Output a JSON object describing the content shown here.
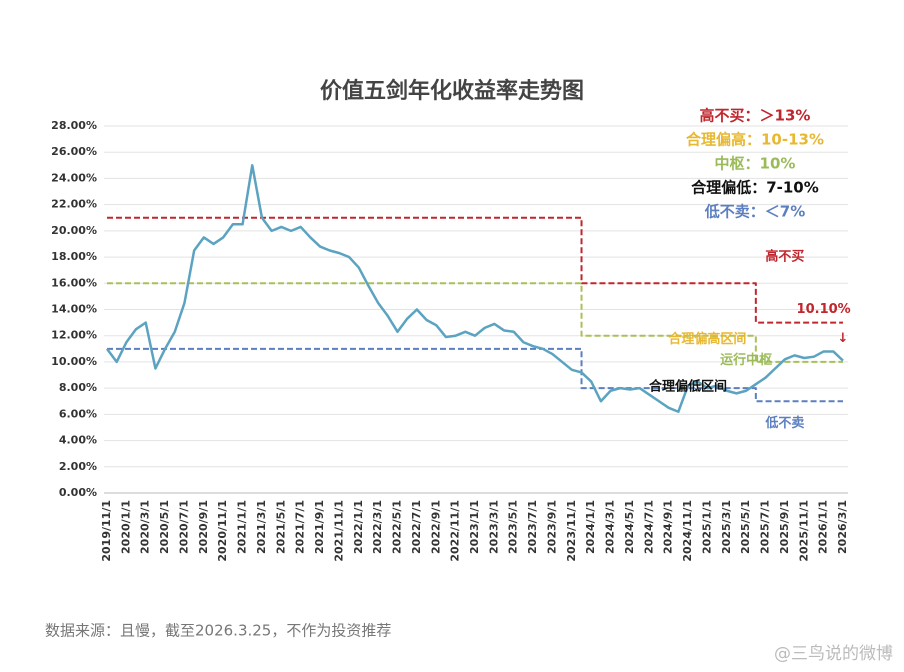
{
  "chart_data": {
    "type": "line",
    "title": "价值五剑年化收益率走势图",
    "categories": [
      "2019/11/1",
      null,
      "2020/1/1",
      null,
      "2020/3/1",
      null,
      "2020/5/1",
      null,
      "2020/7/1",
      null,
      "2020/9/1",
      null,
      "2020/11/1",
      null,
      "2021/1/1",
      null,
      "2021/3/1",
      null,
      "2021/5/1",
      null,
      "2021/7/1",
      null,
      "2021/9/1",
      null,
      "2021/11/1",
      null,
      "2022/1/1",
      null,
      "2022/3/1",
      null,
      "2022/5/1",
      null,
      "2022/7/1",
      null,
      "2022/9/1",
      null,
      "2022/11/1",
      null,
      "2023/1/1",
      null,
      "2023/3/1",
      null,
      "2023/5/1",
      null,
      "2023/7/1",
      null,
      "2023/9/1",
      null,
      "2023/11/1",
      null,
      "2024/1/1",
      null,
      "2024/3/1",
      null,
      "2024/5/1",
      null,
      "2024/7/1",
      null,
      "2024/9/1",
      null,
      "2024/11/1",
      null,
      "2025/1/1",
      null,
      "2025/3/1",
      null,
      "2025/5/1",
      null,
      "2025/7/1",
      null,
      "2025/9/1",
      null,
      "2025/11/1",
      null,
      "2026/1/1",
      null,
      "2026/3/1"
    ],
    "series": [
      {
        "color": "#5ba3c0",
        "style": "solid",
        "values": [
          11.0,
          10.0,
          11.5,
          12.5,
          13.0,
          9.5,
          11.0,
          12.3,
          14.5,
          18.5,
          19.5,
          19.0,
          19.5,
          20.5,
          20.5,
          25.0,
          21.0,
          20.0,
          20.3,
          20.0,
          20.3,
          19.5,
          18.8,
          18.5,
          18.3,
          18.0,
          17.2,
          15.8,
          14.5,
          13.5,
          12.3,
          13.3,
          14.0,
          13.2,
          12.8,
          11.9,
          12.0,
          12.3,
          12.0,
          12.6,
          12.9,
          12.4,
          12.3,
          11.5,
          11.2,
          11.0,
          10.6,
          10.0,
          9.4,
          9.2,
          8.5,
          7.0,
          7.8,
          8.0,
          7.9,
          8.0,
          7.5,
          7.0,
          6.5,
          6.2,
          8.2,
          8.5,
          8.0,
          8.2,
          7.8,
          7.6,
          7.8,
          8.3,
          8.8,
          9.5,
          10.2,
          10.5,
          10.3,
          10.4,
          10.8,
          10.8,
          10.1
        ]
      },
      {
        "color": "#c0262d",
        "style": "dashed-step",
        "values": [
          21,
          21,
          21,
          21,
          21,
          21,
          21,
          21,
          21,
          21,
          21,
          21,
          21,
          21,
          21,
          21,
          21,
          21,
          21,
          21,
          21,
          21,
          21,
          21,
          21,
          21,
          21,
          21,
          21,
          21,
          21,
          21,
          21,
          21,
          21,
          21,
          21,
          21,
          21,
          21,
          21,
          21,
          21,
          21,
          21,
          21,
          21,
          21,
          21,
          16,
          16,
          16,
          16,
          16,
          16,
          16,
          16,
          16,
          16,
          16,
          16,
          16,
          16,
          16,
          16,
          16,
          16,
          13,
          13,
          13,
          13,
          13,
          13,
          13,
          13,
          13,
          13
        ]
      },
      {
        "color": "#a8c05a",
        "style": "dashed-step",
        "values": [
          16,
          16,
          16,
          16,
          16,
          16,
          16,
          16,
          16,
          16,
          16,
          16,
          16,
          16,
          16,
          16,
          16,
          16,
          16,
          16,
          16,
          16,
          16,
          16,
          16,
          16,
          16,
          16,
          16,
          16,
          16,
          16,
          16,
          16,
          16,
          16,
          16,
          16,
          16,
          16,
          16,
          16,
          16,
          16,
          16,
          16,
          16,
          16,
          16,
          12,
          12,
          12,
          12,
          12,
          12,
          12,
          12,
          12,
          12,
          12,
          12,
          12,
          12,
          12,
          12,
          12,
          12,
          10,
          10,
          10,
          10,
          10,
          10,
          10,
          10,
          10,
          10
        ]
      },
      {
        "color": "#5b7fc0",
        "style": "dashed-step",
        "values": [
          11,
          11,
          11,
          11,
          11,
          11,
          11,
          11,
          11,
          11,
          11,
          11,
          11,
          11,
          11,
          11,
          11,
          11,
          11,
          11,
          11,
          11,
          11,
          11,
          11,
          11,
          11,
          11,
          11,
          11,
          11,
          11,
          11,
          11,
          11,
          11,
          11,
          11,
          11,
          11,
          11,
          11,
          11,
          11,
          11,
          11,
          11,
          11,
          11,
          8,
          8,
          8,
          8,
          8,
          8,
          8,
          8,
          8,
          8,
          8,
          8,
          8,
          8,
          8,
          8,
          8,
          8,
          7,
          7,
          7,
          7,
          7,
          7,
          7,
          7,
          7,
          7
        ]
      }
    ],
    "ylim": [
      0,
      28
    ],
    "yticks": [
      {
        "value": 0,
        "label": "0.00%"
      },
      {
        "value": 2,
        "label": "2.00%"
      },
      {
        "value": 4,
        "label": "4.00%"
      },
      {
        "value": 6,
        "label": "6.00%"
      },
      {
        "value": 8,
        "label": "8.00%"
      },
      {
        "value": 10,
        "label": "10.00%"
      },
      {
        "value": 12,
        "label": "12.00%"
      },
      {
        "value": 14,
        "label": "14.00%"
      },
      {
        "value": 16,
        "label": "16.00%"
      },
      {
        "value": 18,
        "label": "18.00%"
      },
      {
        "value": 20,
        "label": "20.00%"
      },
      {
        "value": 22,
        "label": "22.00%"
      },
      {
        "value": 24,
        "label": "24.00%"
      },
      {
        "value": 26,
        "label": "26.00%"
      },
      {
        "value": 28,
        "label": "28.00%"
      }
    ],
    "grid": true,
    "legend_lines": [
      {
        "text": "高不买：＞13%",
        "color": "#c0262d"
      },
      {
        "text": "合理偏高：10-13%",
        "color": "#e8b830"
      },
      {
        "text": "中枢：10%",
        "color": "#9bbb59"
      },
      {
        "text": "合理偏低：7-10%",
        "color": "#111111"
      },
      {
        "text": "低不卖：＜7%",
        "color": "#5b7fc0"
      }
    ],
    "annotations": [
      {
        "text": "高不买",
        "color": "#c0262d",
        "x": "2025/9/1",
        "y": 18
      },
      {
        "text": "10.10%",
        "color": "#c0262d",
        "x": "2026/1/1",
        "y": 14
      },
      {
        "text": "↓",
        "color": "#c0262d",
        "x": "2026/3/1",
        "y": 11.8
      },
      {
        "text": "合理偏高区间",
        "color": "#e8b830",
        "x": "2025/1/1",
        "y": 11.7
      },
      {
        "text": "运行中枢",
        "color": "#9bbb59",
        "x": "2025/5/1",
        "y": 10.1
      },
      {
        "text": "合理偏低区间",
        "color": "#111111",
        "x": "2024/11/1",
        "y": 8.1
      },
      {
        "text": "低不卖",
        "color": "#5b7fc0",
        "x": "2025/9/1",
        "y": 5.3
      }
    ]
  },
  "footer": "数据来源：且慢，截至2026.3.25，不作为投资推荐",
  "watermark": "@三鸟说的微博"
}
